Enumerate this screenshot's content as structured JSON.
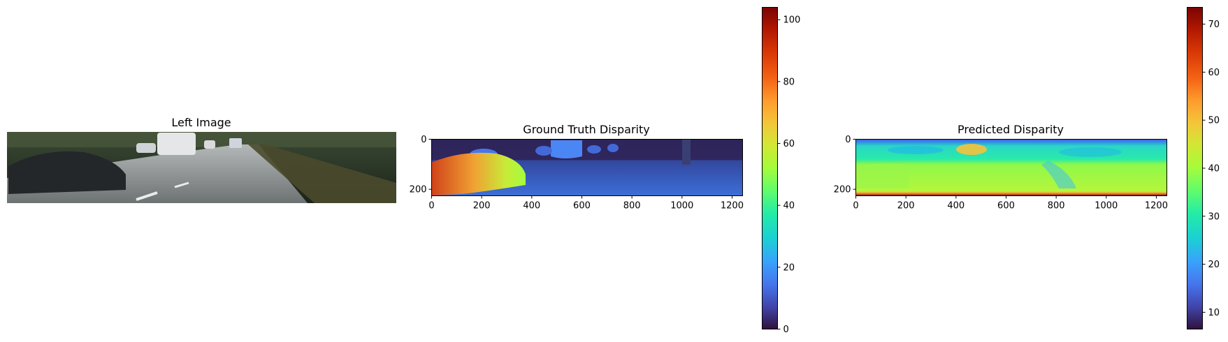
{
  "chart_data": [
    {
      "type": "image",
      "title": "Left Image",
      "axes": "off"
    },
    {
      "type": "heatmap",
      "title": "Ground Truth Disparity",
      "xticks": [
        0,
        200,
        400,
        600,
        800,
        1000,
        1200
      ],
      "yticks": [
        0,
        200
      ],
      "xlim": [
        0,
        1242
      ],
      "ylim": [
        0,
        226
      ],
      "colormap": "turbo",
      "colorbar": {
        "min": 0,
        "max": 104,
        "ticks": [
          0,
          20,
          40,
          60,
          80,
          100
        ]
      }
    },
    {
      "type": "heatmap",
      "title": "Predicted Disparity",
      "xticks": [
        0,
        200,
        400,
        600,
        800,
        1000,
        1200
      ],
      "yticks": [
        0,
        200
      ],
      "xlim": [
        0,
        1242
      ],
      "ylim": [
        0,
        226
      ],
      "colormap": "turbo",
      "colorbar": {
        "min": 6.5,
        "max": 73.5,
        "ticks": [
          10,
          20,
          30,
          40,
          50,
          60,
          70
        ]
      }
    }
  ]
}
